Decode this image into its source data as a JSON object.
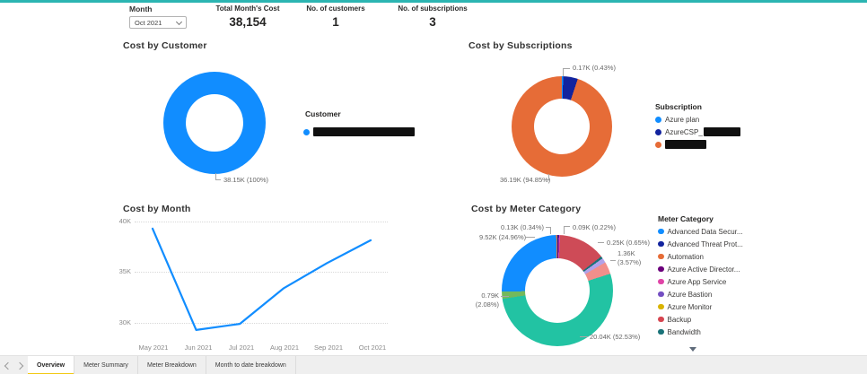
{
  "theme": {
    "top_accent_color": "#2CB5B2",
    "tab_active_underline": "#F2C811",
    "primary_blue": "#118DFF"
  },
  "slicer": {
    "label": "Month",
    "value": "Oct 2021"
  },
  "kpis": [
    {
      "label": "Total Month's Cost",
      "value": "38,154"
    },
    {
      "label": "No. of customers",
      "value": "1"
    },
    {
      "label": "No. of subscriptions",
      "value": "3"
    }
  ],
  "chart_data": [
    {
      "type": "pie",
      "subtype": "donut",
      "title": "Cost by Customer",
      "legend_title": "Customer",
      "legend": [
        {
          "label": "",
          "redacted": true,
          "color": "#118DFF"
        }
      ],
      "slices": [
        {
          "pct": 100,
          "color": "#118DFF",
          "value_label": "38.15K (100%)",
          "value_k": 38.15
        }
      ]
    },
    {
      "type": "pie",
      "subtype": "donut",
      "title": "Cost by Subscriptions",
      "legend_title": "Subscription",
      "legend": [
        {
          "label": "Azure plan",
          "color": "#118DFF"
        },
        {
          "label": "AzureCSP_",
          "redacted_suffix": true,
          "color": "#12239E"
        },
        {
          "label": "",
          "redacted": true,
          "color": "#E66C37"
        }
      ],
      "slices": [
        {
          "pct": 0.43,
          "color": "#118DFF",
          "value_label": "0.17K (0.43%)",
          "value_k": 0.17,
          "name": "Azure plan"
        },
        {
          "pct": 4.72,
          "color": "#12239E",
          "estimated": true
        },
        {
          "pct": 94.85,
          "color": "#E66C37",
          "value_label": "36.19K (94.85%)",
          "value_k": 36.19
        }
      ]
    },
    {
      "type": "line",
      "title": "Cost by Month",
      "x": [
        "May 2021",
        "Jun 2021",
        "Jul 2021",
        "Aug 2021",
        "Sep 2021",
        "Oct 2021"
      ],
      "values": [
        39.3,
        29.3,
        29.9,
        33.4,
        35.9,
        38.15
      ],
      "unit": "K",
      "ylim": [
        29,
        41
      ],
      "yticks": [
        "40K",
        "35K",
        "30K"
      ],
      "grid": "dotted horizontal",
      "line_color": "#118DFF",
      "estimated": true
    },
    {
      "type": "pie",
      "subtype": "donut",
      "title": "Cost by Meter Category",
      "legend_title": "Meter Category",
      "legend": [
        {
          "label": "Advanced Data Secur...",
          "color": "#118DFF"
        },
        {
          "label": "Advanced Threat Prot...",
          "color": "#12239E"
        },
        {
          "label": "Automation",
          "color": "#E66C37"
        },
        {
          "label": "Azure Active Director...",
          "color": "#6B007B"
        },
        {
          "label": "Azure App Service",
          "color": "#E044A7"
        },
        {
          "label": "Azure Bastion",
          "color": "#744EC2"
        },
        {
          "label": "Azure Monitor",
          "color": "#D9B300"
        },
        {
          "label": "Backup",
          "color": "#D64550"
        },
        {
          "label": "Bandwidth",
          "color": "#197278"
        }
      ],
      "legend_has_more": true,
      "slices": [
        {
          "pct": 0.22,
          "color": "#12239E",
          "value_label": "0.09K (0.22%)",
          "value_k": 0.09,
          "name": "Advanced Threat Prot..."
        },
        {
          "pct": 0.25,
          "color": "#6B007B",
          "estimated": true,
          "name": "Azure Active Director..."
        },
        {
          "pct": 0.35,
          "color": "#E044A7",
          "estimated": true,
          "name": "Azure App Service"
        },
        {
          "pct": 13.65,
          "color": "#CE4B57",
          "estimated": true,
          "name": "Backup"
        },
        {
          "pct": 0.65,
          "color": "#197278",
          "value_label": "0.25K (0.65%)",
          "value_k": 0.25,
          "name": "Bandwidth"
        },
        {
          "pct": 1.4,
          "color": "#B1A2E9",
          "estimated": true,
          "name": "Azure Bastion"
        },
        {
          "pct": 3.57,
          "color": "#F18F8B",
          "value_label": "1.36K (3.57%)",
          "value_k": 1.36
        },
        {
          "pct": 52.53,
          "color": "#22C3A3",
          "value_label": "20.04K (52.53%)",
          "value_k": 20.04
        },
        {
          "pct": 2.08,
          "color": "#74B95C",
          "value_label": "0.79K (2.08%)",
          "value_k": 0.79
        },
        {
          "pct": 24.96,
          "color": "#118DFF",
          "value_label": "9.52K (24.96%)",
          "value_k": 9.52,
          "name": "Advanced Data Secur..."
        },
        {
          "pct": 0.34,
          "color": "#E66C37",
          "value_label": "0.13K (0.34%)",
          "value_k": 0.13,
          "name": "Automation"
        }
      ],
      "callouts": {
        "c1": "0.13K (0.34%)",
        "c2": "0.09K (0.22%)",
        "c3": "9.52K (24.96%)",
        "c4": "0.25K (0.65%)",
        "c5a": "1.36K",
        "c5b": "(3.57%)",
        "c6a": "0.79K",
        "c6b": "(2.08%)",
        "c7": "20.04K (52.53%)"
      }
    }
  ],
  "tab_bar": {
    "tabs": [
      {
        "label": "Overview",
        "active": true
      },
      {
        "label": "Meter Summary",
        "active": false
      },
      {
        "label": "Meter Breakdown",
        "active": false
      },
      {
        "label": "Month to date breakdown",
        "active": false
      }
    ]
  }
}
